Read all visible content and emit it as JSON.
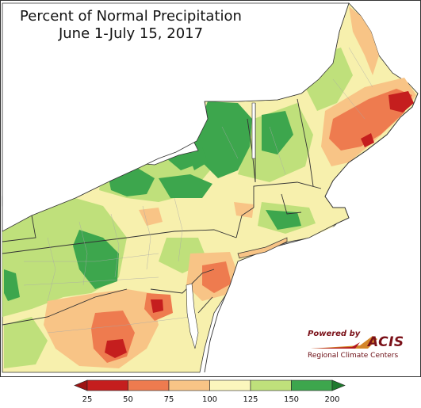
{
  "title": "Percent of Normal Precipitation\nJune 1-July 15, 2017",
  "credit": {
    "powered_by": "Powered by",
    "brand": "ACIS",
    "subtitle": "Regional Climate Centers"
  },
  "colors": {
    "water": "#ffffff",
    "land_default": "#f7f0ad",
    "bin_25_50": "#c51e1e",
    "bin_50_75": "#ee7b4f",
    "bin_75_100": "#f8c486",
    "bin_100_125": "#fbf6bd",
    "bin_125_150": "#bfe07b",
    "bin_150_200": "#3da64d",
    "outline": "#333333",
    "county_lines": "#999999"
  },
  "legend": {
    "labels": [
      "25",
      "50",
      "75",
      "100",
      "125",
      "150",
      "200"
    ],
    "bins": [
      {
        "from": 25,
        "to": 50,
        "color": "#c51e1e"
      },
      {
        "from": 50,
        "to": 75,
        "color": "#ee7b4f"
      },
      {
        "from": 75,
        "to": 100,
        "color": "#f8c486"
      },
      {
        "from": 100,
        "to": 125,
        "color": "#fbf6bd"
      },
      {
        "from": 125,
        "to": 150,
        "color": "#bfe07b"
      },
      {
        "from": 150,
        "to": 200,
        "color": "#3da64d"
      }
    ],
    "arrow_low_color": "#9e1414",
    "arrow_high_color": "#1e7a2e"
  }
}
